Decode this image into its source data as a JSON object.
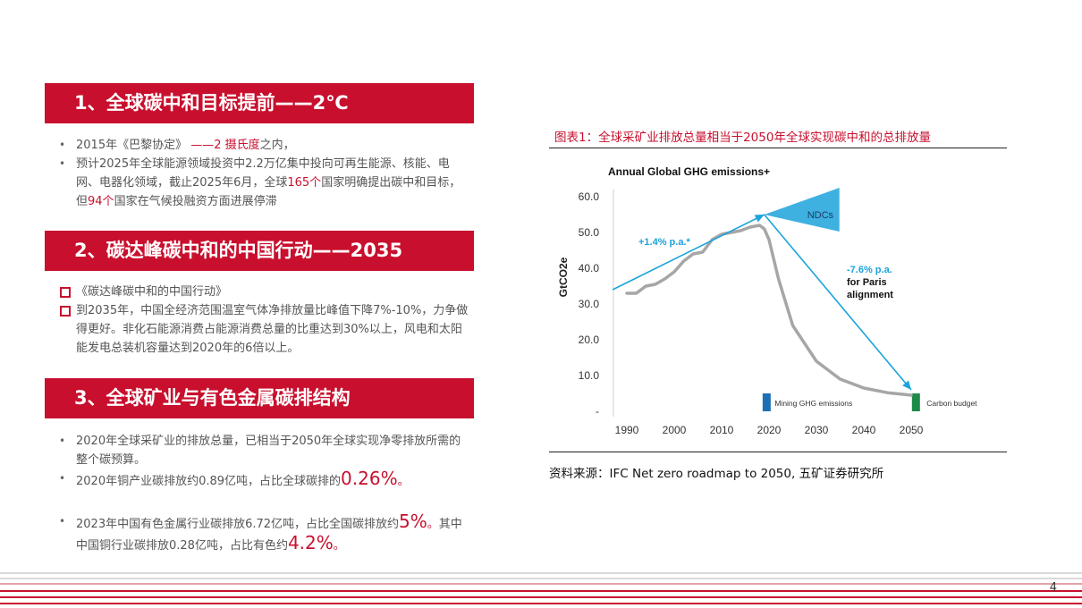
{
  "sections": [
    {
      "title": "1、全球碳中和目标提前——2℃",
      "items": [
        [
          {
            "t": "2015年《巴黎协定》 "
          },
          {
            "t": "——2 摄氏度",
            "c": "red"
          },
          {
            "t": "之内，"
          }
        ],
        [
          {
            "t": "预计2025年全球能源领域投资中2.2万亿集中投向可再生能源、核能、电网、电器化领域，截止2025年6月，全球"
          },
          {
            "t": "165个",
            "c": "red"
          },
          {
            "t": "国家明确提出碳中和目标，但"
          },
          {
            "t": "94个",
            "c": "red"
          },
          {
            "t": "国家在气候投融资方面进展停滞"
          }
        ]
      ]
    },
    {
      "title": "2、碳达峰碳中和的中国行动——2035",
      "items": [
        [
          {
            "t": "《碳达峰碳中和的中国行动》"
          }
        ],
        [
          {
            "t": "到2035年，中国全经济范围温室气体净排放量比峰值下降7%-10%，力争做得更好。非化石能源消费占能源消费总量的比重达到30%以上，风电和太阳能发电总装机容量达到2020年的6倍以上。"
          }
        ]
      ]
    },
    {
      "title": "3、全球矿业与有色金属碳排结构",
      "items": [
        [
          {
            "t": "2020年全球采矿业的排放总量，已相当于2050年全球实现净零排放所需的整个碳预算。"
          }
        ],
        [
          {
            "t": "2020年铜产业碳排放约0.89亿吨，占比全球碳排的"
          },
          {
            "t": "0.26%",
            "c": "big"
          },
          {
            "t": "。",
            "c": "red"
          }
        ],
        [
          {
            "t": "2023年中国有色金属行业碳排放6.72亿吨，占比全国碳排放约"
          },
          {
            "t": "5%",
            "c": "big"
          },
          {
            "t": "。",
            "c": "red"
          },
          {
            "t": "其中中国铜行业碳排放0.28亿吨，占比有色约"
          },
          {
            "t": "4.2%",
            "c": "big"
          },
          {
            "t": "。",
            "c": "red"
          }
        ]
      ]
    }
  ],
  "figure": {
    "caption": "图表1：全球采矿业排放总量相当于2050年全球实现碳中和的总排放量",
    "source": "资料来源：IFC Net zero roadmap to 2050, 五矿证券研究所"
  },
  "page_number": "4",
  "colors": {
    "accent": "#c8102e",
    "arrow": "#1ca3dc",
    "curve": "#a6a6a6",
    "mining_bar": "#1f6fb5",
    "budget_bar": "#1e8a4a"
  },
  "chart_data": {
    "type": "line",
    "title": "Annual Global GHG emissions+",
    "ylabel": "GtCO2e",
    "xlabel": "",
    "x_ticks": [
      "1990",
      "2000",
      "2010",
      "2020",
      "2030",
      "2040",
      "2050"
    ],
    "y_ticks": [
      "60.0",
      "50.0",
      "40.0",
      "30.0",
      "20.0",
      "10.0",
      "-"
    ],
    "ylim": [
      0,
      60
    ],
    "xlim": [
      1987,
      2053
    ],
    "grid": false,
    "series": [
      {
        "x": [
          1990,
          1992,
          1994,
          1996,
          1998,
          2000,
          2002,
          2004,
          2006,
          2008,
          2010,
          2012,
          2014,
          2016,
          2018,
          2019,
          2020,
          2022,
          2025,
          2030,
          2035,
          2040,
          2045,
          2050
        ],
        "values": [
          33,
          33,
          35,
          35.5,
          37,
          39,
          42,
          44,
          44.5,
          48,
          49.5,
          50,
          50.5,
          51.5,
          52,
          51,
          48,
          37,
          24,
          14,
          9,
          6.5,
          5.2,
          4.5
        ]
      }
    ],
    "annotations": [
      {
        "text": "+1.4% p.a.*",
        "color": "#1ca3dc"
      },
      {
        "text": "NDCs",
        "color": "#1a3b66"
      },
      {
        "text": "-7.6% p.a.",
        "color": "#1ca3dc"
      },
      {
        "text": "for Paris",
        "color": "#111111"
      },
      {
        "text": "alignment",
        "color": "#111111"
      }
    ],
    "legend": [
      {
        "label": "Mining GHG emissions",
        "color": "#1f6fb5"
      },
      {
        "label": "Carbon budget",
        "color": "#1e8a4a"
      }
    ],
    "trend_arrows": [
      {
        "from": [
          1987,
          34
        ],
        "to": [
          2019,
          55
        ]
      },
      {
        "from": [
          2019,
          55
        ],
        "to": [
          2050,
          6
        ]
      }
    ],
    "bars": [
      {
        "x": 2019.5,
        "value": 5
      },
      {
        "x": 2051,
        "value": 5
      }
    ]
  }
}
